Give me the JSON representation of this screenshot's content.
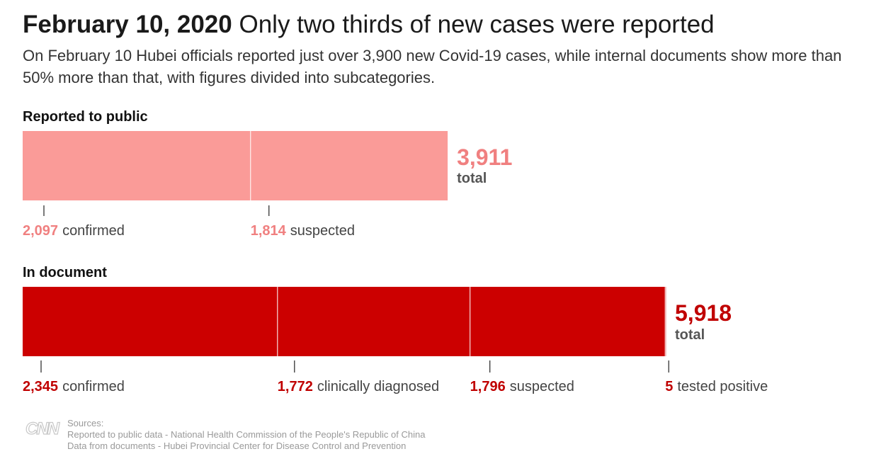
{
  "header": {
    "date": "February 10, 2020",
    "title": "Only two thirds of new cases were reported",
    "subtitle": "On February 10 Hubei officials reported just over 3,900 new Covid-19 cases, while internal documents show more than 50% more than that, with figures divided into subcategories."
  },
  "chart_data": [
    {
      "type": "bar",
      "stacked": true,
      "orientation": "horizontal",
      "title": "Reported to public",
      "color": "#fa9b98",
      "total": 3911,
      "total_label": "3,911",
      "total_suffix": "total",
      "series": [
        {
          "name": "confirmed",
          "value": 2097,
          "label": "2,097"
        },
        {
          "name": "suspected",
          "value": 1814,
          "label": "1,814"
        }
      ]
    },
    {
      "type": "bar",
      "stacked": true,
      "orientation": "horizontal",
      "title": "In document",
      "color": "#cc0000",
      "total": 5918,
      "total_label": "5,918",
      "total_suffix": "total",
      "series": [
        {
          "name": "confirmed",
          "value": 2345,
          "label": "2,345"
        },
        {
          "name": "clinically diagnosed",
          "value": 1772,
          "label": "1,772"
        },
        {
          "name": "suspected",
          "value": 1796,
          "label": "1,796"
        },
        {
          "name": "tested positive",
          "value": 5,
          "label": "5"
        }
      ]
    }
  ],
  "colors": {
    "public_value_text": "#f08080",
    "document_value_text": "#c00000",
    "label_text": "#444444",
    "tick": "#333333"
  },
  "footer": {
    "logo": "CNN",
    "sources_label": "Sources:",
    "sources": [
      "Reported to public data - National Health Commission of the People's Republic of China",
      "Data from documents - Hubei Provincial Center for Disease Control and Prevention"
    ]
  }
}
